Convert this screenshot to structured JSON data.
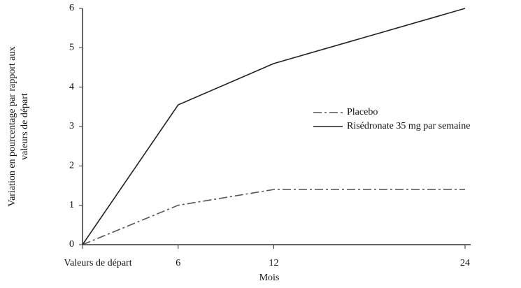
{
  "chart_data": {
    "type": "line",
    "ylabel": [
      "Variation en pourcentage par rapport aux",
      "valeurs de départ"
    ],
    "xlabel": "Mois",
    "x": [
      0,
      6,
      12,
      24
    ],
    "xlim": [
      0,
      24
    ],
    "xticks": [
      {
        "value": 0,
        "label": "Valeurs de départ"
      },
      6,
      12,
      24
    ],
    "ylim": [
      0,
      6
    ],
    "yticks": [
      0,
      1,
      2,
      3,
      4,
      5,
      6
    ],
    "series": [
      {
        "name": "Placebo",
        "color": "#555555",
        "dash": "dash-dot",
        "values": [
          0,
          1.0,
          1.4,
          1.4
        ]
      },
      {
        "name": "Risédronate 35 mg par semaine",
        "color": "#222222",
        "dash": "solid",
        "values": [
          0,
          3.55,
          4.6,
          6.0
        ]
      }
    ]
  }
}
